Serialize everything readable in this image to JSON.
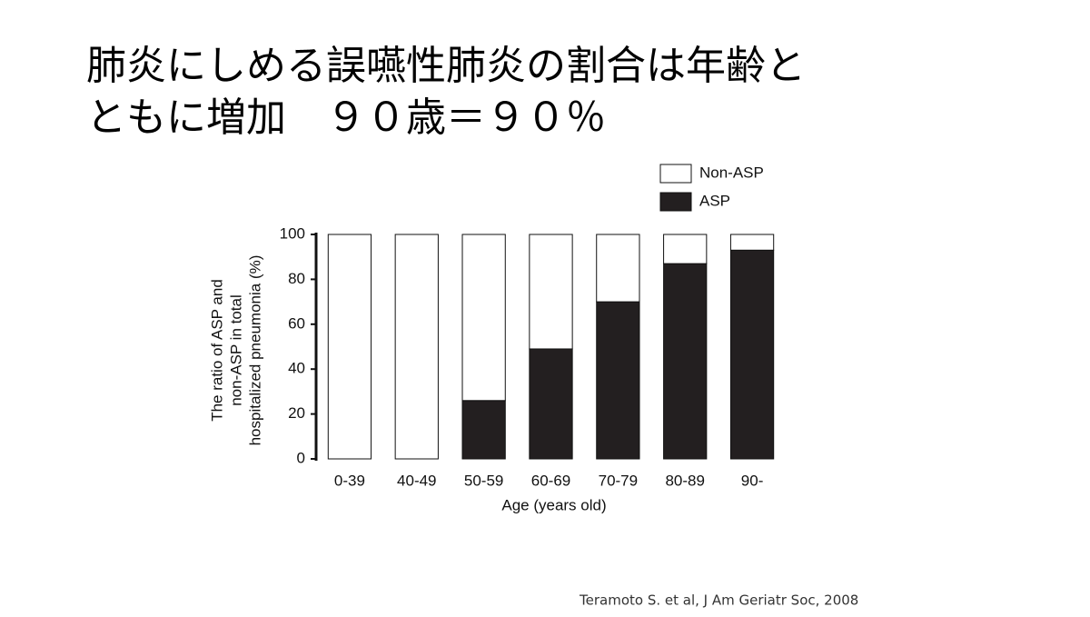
{
  "title_lines": [
    "肺炎にしめる誤嚥性肺炎の割合は年齢と",
    "ともに増加　９０歳＝９０％"
  ],
  "chart_data": {
    "type": "stacked-bar",
    "categories": [
      "0-39",
      "40-49",
      "50-59",
      "60-69",
      "70-79",
      "80-89",
      "90-"
    ],
    "series": [
      {
        "name": "ASP",
        "color": "#231f20",
        "values": [
          0,
          0,
          26,
          49,
          70,
          87,
          93
        ]
      },
      {
        "name": "Non-ASP",
        "color": "#ffffff",
        "values": [
          100,
          100,
          74,
          51,
          30,
          13,
          7
        ]
      }
    ],
    "ylim": [
      0,
      100
    ],
    "yticks": [
      0,
      20,
      40,
      60,
      80,
      100
    ],
    "x_label": "Age (years old)",
    "y_label": [
      "The ratio of ASP and",
      "non-ASP in total",
      "hospitalized pneumonia (%)"
    ],
    "legend": "top-right"
  },
  "citation": "Teramoto S. et al, J Am Geriatr Soc, 2008"
}
